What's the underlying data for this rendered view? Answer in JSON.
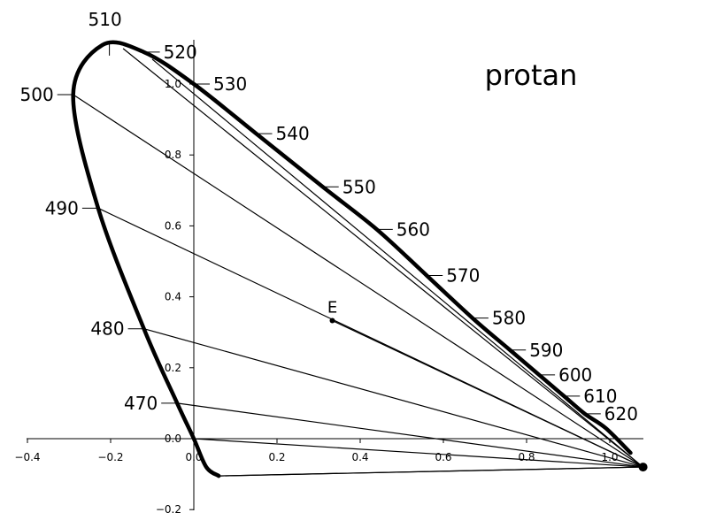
{
  "chart_data": {
    "type": "line",
    "title": "protan",
    "x_ticks": [
      "−0.4",
      "−0.2",
      "0.0",
      "0.2",
      "0.4",
      "0.6",
      "0.8",
      "1.0"
    ],
    "y_ticks": [
      "−0.2",
      "0.0",
      "0.2",
      "0.4",
      "0.6",
      "0.8",
      "1.0"
    ],
    "xlim": [
      -0.4,
      1.08
    ],
    "ylim": [
      -0.2,
      1.1
    ],
    "copunctal_point": {
      "x": 1.08,
      "y": -0.08
    },
    "equal_energy": {
      "label": "E",
      "x": 0.333,
      "y": 0.333
    },
    "spectral_locus": [
      {
        "wl": "470",
        "x": -0.04,
        "y": 0.1
      },
      {
        "wl": "480",
        "x": -0.12,
        "y": 0.31
      },
      {
        "wl": "490",
        "x": -0.23,
        "y": 0.65
      },
      {
        "wl": "500",
        "x": -0.29,
        "y": 0.97
      },
      {
        "wl": "510",
        "x": -0.22,
        "y": 1.11
      },
      {
        "wl": "520",
        "x": -0.12,
        "y": 1.09
      },
      {
        "wl": "530",
        "x": 0.0,
        "y": 1.0
      },
      {
        "wl": "540",
        "x": 0.15,
        "y": 0.86
      },
      {
        "wl": "550",
        "x": 0.31,
        "y": 0.71
      },
      {
        "wl": "560",
        "x": 0.44,
        "y": 0.59
      },
      {
        "wl": "570",
        "x": 0.56,
        "y": 0.46
      },
      {
        "wl": "580",
        "x": 0.67,
        "y": 0.34
      },
      {
        "wl": "590",
        "x": 0.76,
        "y": 0.25
      },
      {
        "wl": "600",
        "x": 0.83,
        "y": 0.18
      },
      {
        "wl": "610",
        "x": 0.89,
        "y": 0.12
      },
      {
        "wl": "620",
        "x": 0.94,
        "y": 0.07
      }
    ],
    "confusion_line_ends": [
      {
        "x": -0.17,
        "y": 1.1
      },
      {
        "x": -0.29,
        "y": 0.97
      },
      {
        "x": -0.23,
        "y": 0.65
      },
      {
        "x": -0.12,
        "y": 0.31
      },
      {
        "x": -0.04,
        "y": 0.1
      },
      {
        "x": 0.0,
        "y": 0.0
      },
      {
        "x": 0.06,
        "y": -0.105
      },
      {
        "x": -0.1,
        "y": 1.07
      },
      {
        "x": 0.333,
        "y": 0.333
      }
    ]
  }
}
